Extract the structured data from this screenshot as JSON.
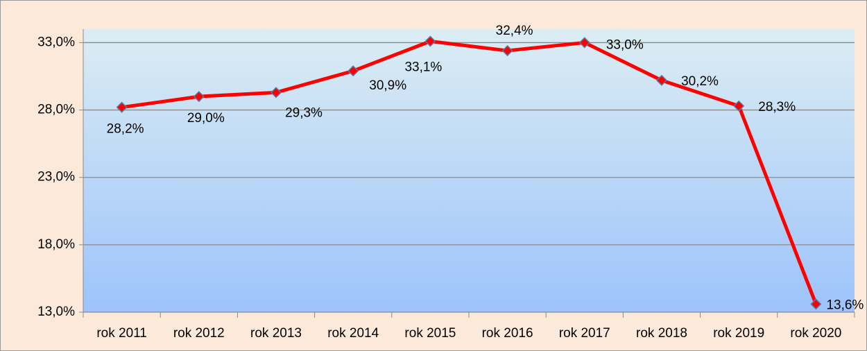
{
  "chart_data": {
    "type": "line",
    "categories": [
      "rok 2011",
      "rok 2012",
      "rok 2013",
      "rok 2014",
      "rok 2015",
      "rok 2016",
      "rok 2017",
      "rok 2018",
      "rok 2019",
      "rok 2020"
    ],
    "series": [
      {
        "color": "#ff0000",
        "marker_color": "#ff0000",
        "values": [
          28.2,
          29.0,
          29.3,
          30.9,
          33.1,
          32.4,
          33.0,
          30.2,
          28.3,
          13.6
        ],
        "value_labels": [
          "28,2%",
          "29,0%",
          "29,3%",
          "30,9%",
          "33,1%",
          "32,4%",
          "33,0%",
          "30,2%",
          "28,3%",
          "13,6%"
        ]
      }
    ],
    "ylim": [
      13,
      34
    ],
    "yticks": [
      {
        "value": 13,
        "label": "13,0%"
      },
      {
        "value": 18,
        "label": "18,0%"
      },
      {
        "value": 23,
        "label": "23,0%"
      },
      {
        "value": 28,
        "label": "28,0%"
      },
      {
        "value": 33,
        "label": "33,0%"
      }
    ],
    "grid": true
  }
}
